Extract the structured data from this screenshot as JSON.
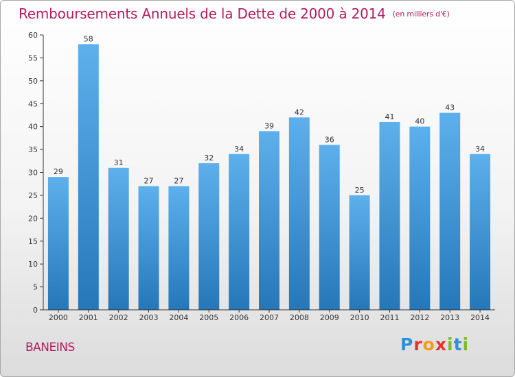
{
  "title": "Remboursements Annuels de la Dette de 2000 à 2014",
  "title_unit": "(en milliers d'€)",
  "commune": "BANEINS",
  "logo": {
    "letters": [
      "P",
      "r",
      "o",
      "x",
      "i",
      "t",
      "i"
    ],
    "colors": [
      "#2f8fd6",
      "#e8312f",
      "#f59a1c",
      "#e8312f",
      "#7cbb2c",
      "#2f8fd6",
      "#7cbb2c"
    ]
  },
  "colors": {
    "title": "#b21d60",
    "bar_top": "#5eb0ec",
    "bar_bottom": "#2577b8",
    "axis": "#333333",
    "grid": "#d0d0d0"
  },
  "chart_data": {
    "type": "bar",
    "title": "Remboursements Annuels de la Dette de 2000 à 2014",
    "ylabel": "",
    "xlabel": "",
    "categories": [
      "2000",
      "2001",
      "2002",
      "2003",
      "2004",
      "2005",
      "2006",
      "2007",
      "2008",
      "2009",
      "2010",
      "2011",
      "2012",
      "2013",
      "2014"
    ],
    "values": [
      29,
      58,
      31,
      27,
      27,
      32,
      34,
      39,
      42,
      36,
      25,
      41,
      40,
      43,
      34
    ],
    "ylim": [
      0,
      60
    ],
    "yticks": [
      0,
      5,
      10,
      15,
      20,
      25,
      30,
      35,
      40,
      45,
      50,
      55,
      60
    ],
    "grid": false,
    "data_labels": true
  }
}
